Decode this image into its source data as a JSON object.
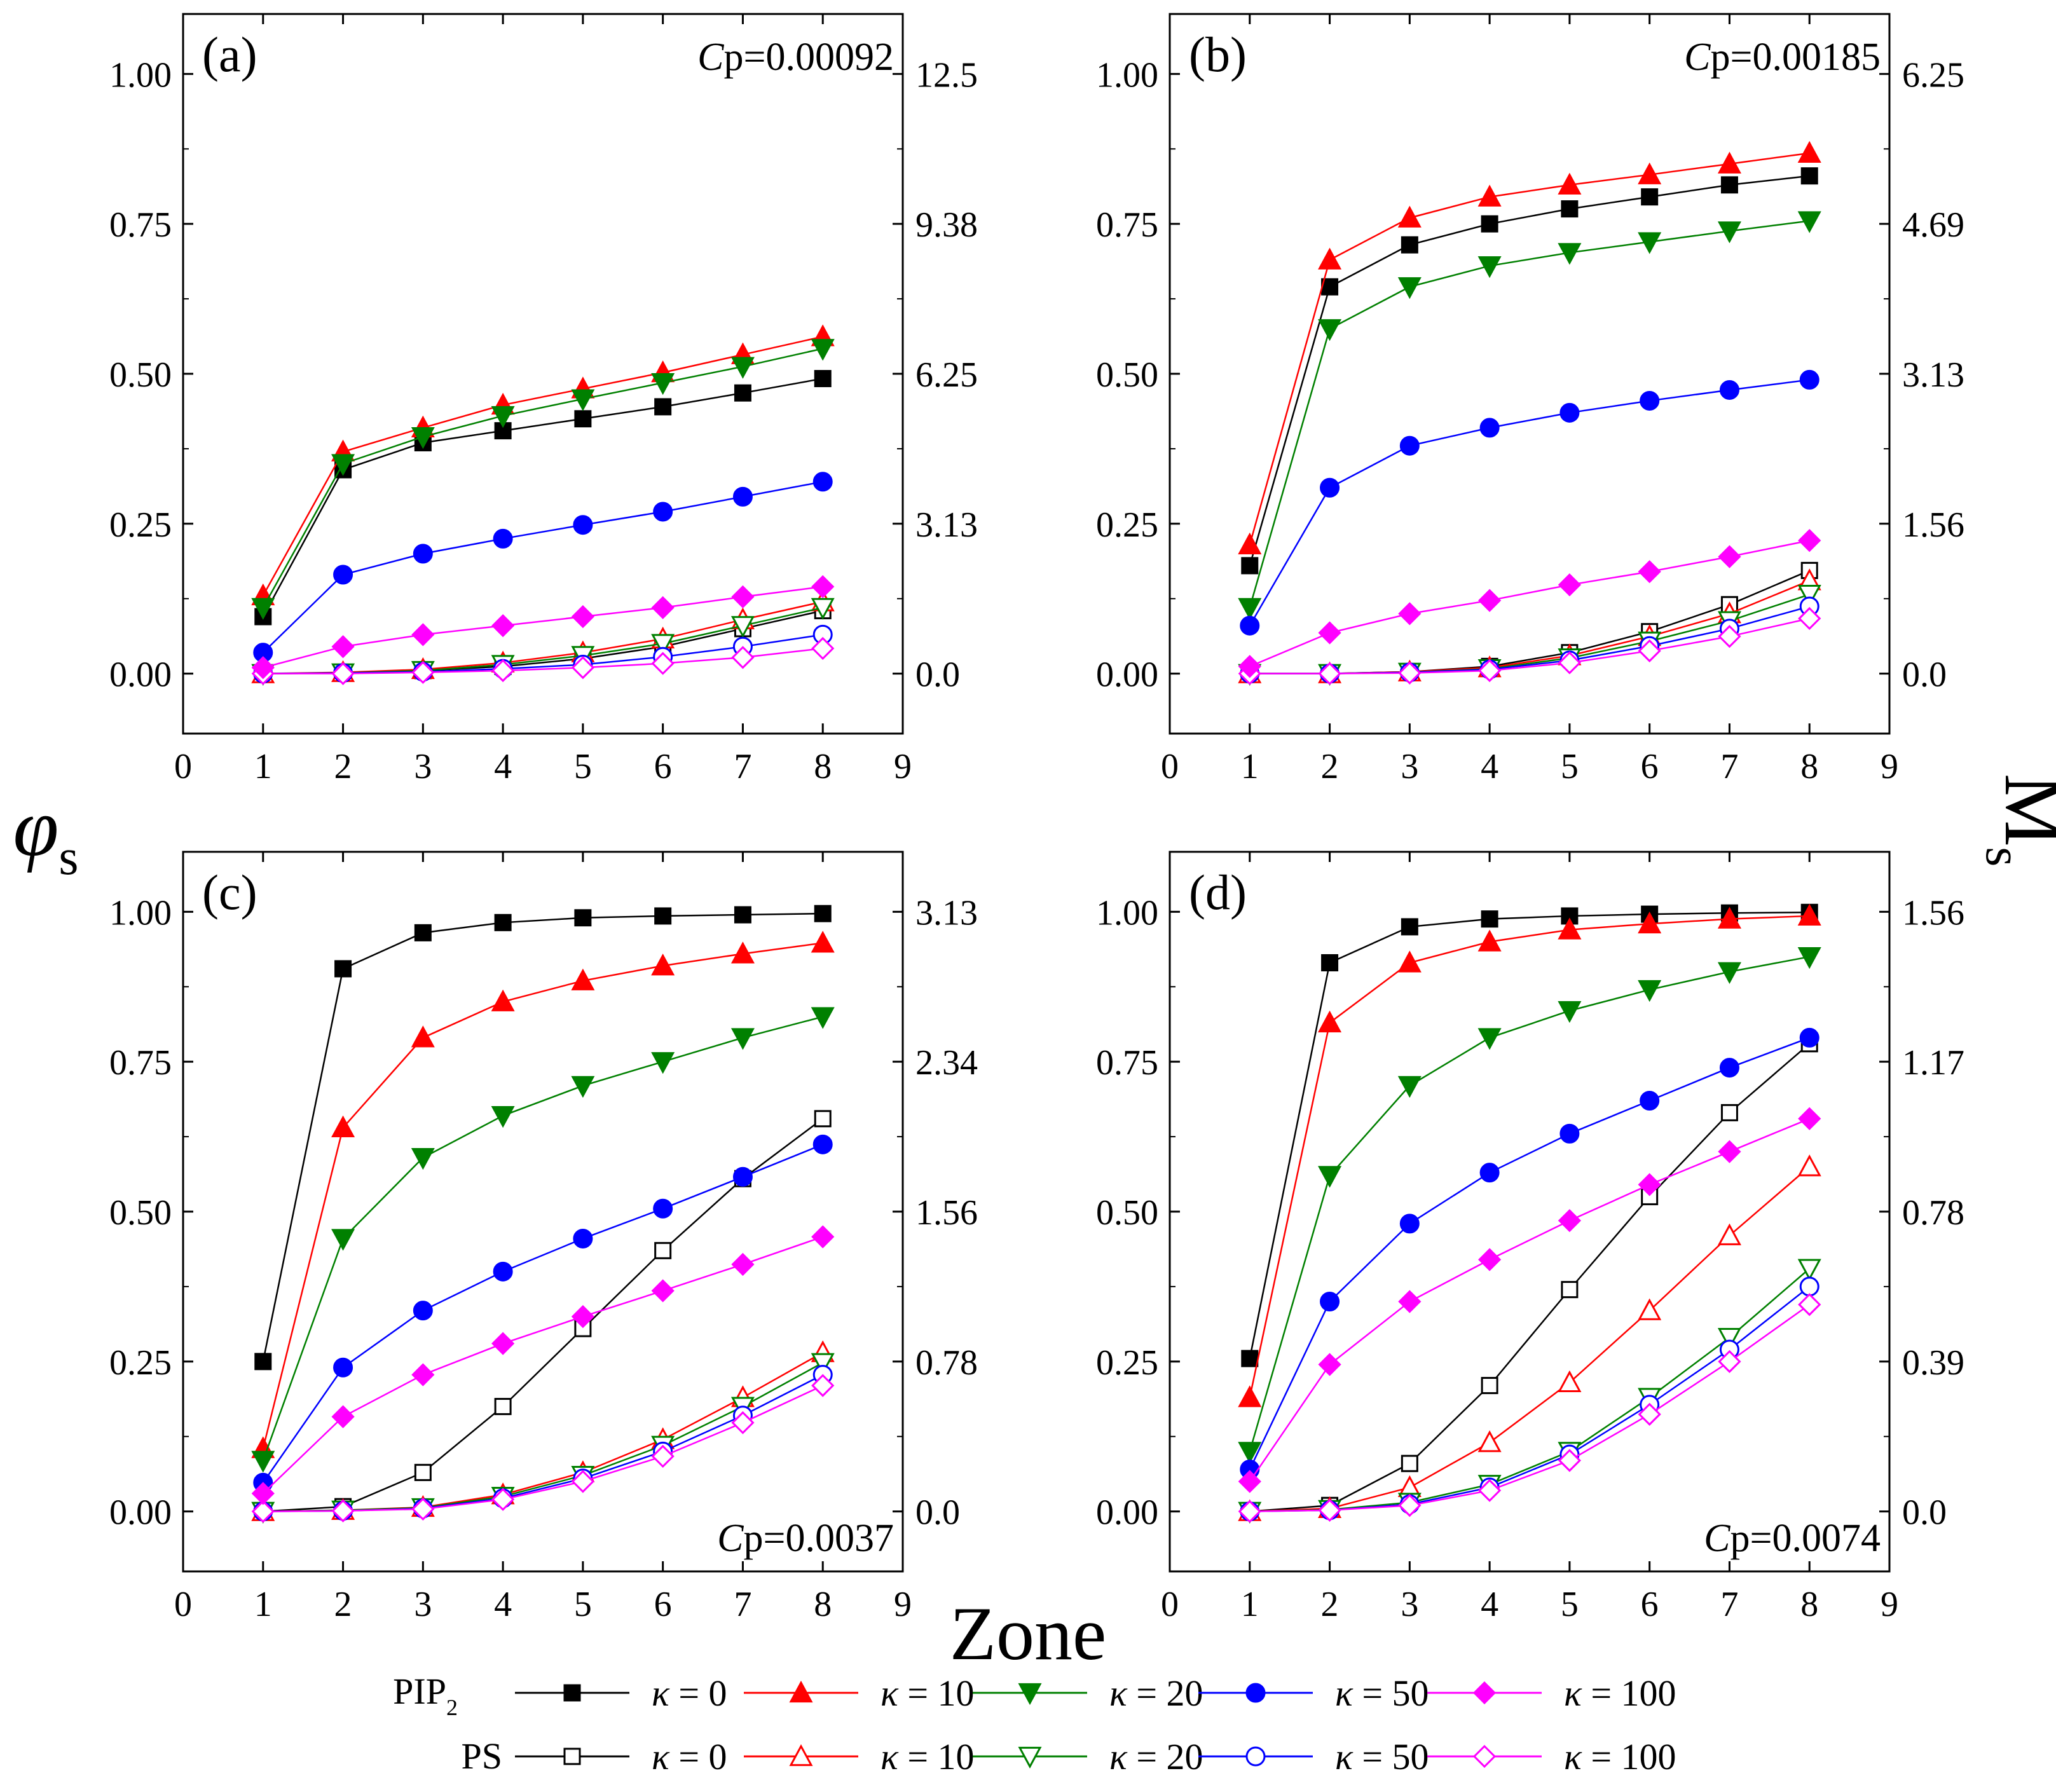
{
  "figure": {
    "y_title_left": "φ",
    "y_title_left_sub": "s",
    "y_title_right": "M",
    "y_title_right_sub": "s",
    "x_title": "Zone"
  },
  "colors": {
    "k0": "#000000",
    "k10": "#ff0000",
    "k20": "#008000",
    "k50": "#0000ff",
    "k100": "#ff00ff"
  },
  "legend": {
    "pip2_label": "PIP",
    "pip2_sub": "2",
    "ps_label": "PS",
    "entries": [
      {
        "key": "k0",
        "kappa": "κ",
        "text": " = 0",
        "marker": "square"
      },
      {
        "key": "k10",
        "kappa": "κ",
        "text": " = 10",
        "marker": "triangle-up"
      },
      {
        "key": "k20",
        "kappa": "κ",
        "text": " = 20",
        "marker": "triangle-down"
      },
      {
        "key": "k50",
        "kappa": "κ",
        "text": " = 50",
        "marker": "circle"
      },
      {
        "key": "k100",
        "kappa": "κ",
        "text": " = 100",
        "marker": "diamond"
      }
    ]
  },
  "chart_data": [
    {
      "type": "line",
      "panel": "(a)",
      "cp_text": "p=0.00092",
      "cp_italic": "C",
      "xlim": [
        0,
        9
      ],
      "ylim": [
        -0.1,
        1.1
      ],
      "x_ticks": [
        "0",
        "1",
        "2",
        "3",
        "4",
        "5",
        "6",
        "7",
        "8",
        "9"
      ],
      "y_ticks": [
        "0.00",
        "0.25",
        "0.50",
        "0.75",
        "1.00"
      ],
      "right_ticks": [
        "0.0",
        "3.13",
        "6.25",
        "9.38",
        "12.5"
      ],
      "x": [
        1,
        2,
        3,
        4,
        5,
        6,
        7,
        8
      ],
      "series": [
        {
          "group": "PIP2",
          "key": "k0",
          "values": [
            0.095,
            0.34,
            0.385,
            0.405,
            0.425,
            0.445,
            0.468,
            0.492
          ]
        },
        {
          "group": "PIP2",
          "key": "k10",
          "values": [
            0.13,
            0.37,
            0.41,
            0.448,
            0.475,
            0.502,
            0.532,
            0.562
          ]
        },
        {
          "group": "PIP2",
          "key": "k20",
          "values": [
            0.11,
            0.35,
            0.395,
            0.43,
            0.458,
            0.485,
            0.512,
            0.542
          ]
        },
        {
          "group": "PIP2",
          "key": "k50",
          "values": [
            0.035,
            0.165,
            0.2,
            0.225,
            0.248,
            0.27,
            0.295,
            0.32
          ]
        },
        {
          "group": "PIP2",
          "key": "k100",
          "values": [
            0.01,
            0.045,
            0.065,
            0.08,
            0.095,
            0.11,
            0.128,
            0.145
          ]
        },
        {
          "group": "PS",
          "key": "k0",
          "values": [
            0.0,
            0.001,
            0.005,
            0.012,
            0.025,
            0.045,
            0.075,
            0.105
          ]
        },
        {
          "group": "PS",
          "key": "k10",
          "values": [
            0.0,
            0.002,
            0.007,
            0.018,
            0.035,
            0.058,
            0.09,
            0.12
          ]
        },
        {
          "group": "PS",
          "key": "k20",
          "values": [
            0.0,
            0.001,
            0.005,
            0.015,
            0.03,
            0.05,
            0.08,
            0.11
          ]
        },
        {
          "group": "PS",
          "key": "k50",
          "values": [
            0.0,
            0.001,
            0.003,
            0.008,
            0.015,
            0.028,
            0.045,
            0.065
          ]
        },
        {
          "group": "PS",
          "key": "k100",
          "values": [
            0.0,
            0.0,
            0.002,
            0.005,
            0.01,
            0.017,
            0.027,
            0.042
          ]
        }
      ]
    },
    {
      "type": "line",
      "panel": "(b)",
      "cp_text": "p=0.00185",
      "cp_italic": "C",
      "xlim": [
        0,
        9
      ],
      "ylim": [
        -0.1,
        1.1
      ],
      "x_ticks": [
        "0",
        "1",
        "2",
        "3",
        "4",
        "5",
        "6",
        "7",
        "8",
        "9"
      ],
      "y_ticks": [
        "0.00",
        "0.25",
        "0.50",
        "0.75",
        "1.00"
      ],
      "right_ticks": [
        "0.0",
        "1.56",
        "3.13",
        "4.69",
        "6.25"
      ],
      "x": [
        1,
        2,
        3,
        4,
        5,
        6,
        7,
        8
      ],
      "series": [
        {
          "group": "PIP2",
          "key": "k0",
          "values": [
            0.18,
            0.645,
            0.715,
            0.75,
            0.775,
            0.795,
            0.815,
            0.83
          ]
        },
        {
          "group": "PIP2",
          "key": "k10",
          "values": [
            0.215,
            0.69,
            0.76,
            0.795,
            0.815,
            0.832,
            0.85,
            0.868
          ]
        },
        {
          "group": "PIP2",
          "key": "k20",
          "values": [
            0.11,
            0.575,
            0.645,
            0.68,
            0.702,
            0.72,
            0.738,
            0.755
          ]
        },
        {
          "group": "PIP2",
          "key": "k50",
          "values": [
            0.08,
            0.31,
            0.38,
            0.41,
            0.435,
            0.455,
            0.473,
            0.49
          ]
        },
        {
          "group": "PIP2",
          "key": "k100",
          "values": [
            0.012,
            0.068,
            0.1,
            0.122,
            0.148,
            0.17,
            0.195,
            0.222
          ]
        },
        {
          "group": "PS",
          "key": "k0",
          "values": [
            0.0,
            0.0,
            0.003,
            0.012,
            0.035,
            0.07,
            0.115,
            0.172
          ]
        },
        {
          "group": "PS",
          "key": "k10",
          "values": [
            0.0,
            0.0,
            0.003,
            0.01,
            0.03,
            0.062,
            0.1,
            0.155
          ]
        },
        {
          "group": "PS",
          "key": "k20",
          "values": [
            0.0,
            0.0,
            0.002,
            0.008,
            0.026,
            0.054,
            0.088,
            0.132
          ]
        },
        {
          "group": "PS",
          "key": "k50",
          "values": [
            0.0,
            0.0,
            0.002,
            0.007,
            0.022,
            0.046,
            0.075,
            0.112
          ]
        },
        {
          "group": "PS",
          "key": "k100",
          "values": [
            0.0,
            0.0,
            0.001,
            0.005,
            0.018,
            0.038,
            0.062,
            0.092
          ]
        }
      ]
    },
    {
      "type": "line",
      "panel": "(c)",
      "cp_text": "p=0.0037",
      "cp_italic": "C",
      "xlim": [
        0,
        9
      ],
      "ylim": [
        -0.1,
        1.1
      ],
      "x_ticks": [
        "0",
        "1",
        "2",
        "3",
        "4",
        "5",
        "6",
        "7",
        "8",
        "9"
      ],
      "y_ticks": [
        "0.00",
        "0.25",
        "0.50",
        "0.75",
        "1.00"
      ],
      "right_ticks": [
        "0.0",
        "0.78",
        "1.56",
        "2.34",
        "3.13"
      ],
      "x": [
        1,
        2,
        3,
        4,
        5,
        6,
        7,
        8
      ],
      "series": [
        {
          "group": "PIP2",
          "key": "k0",
          "values": [
            0.25,
            0.905,
            0.965,
            0.982,
            0.99,
            0.993,
            0.995,
            0.997
          ]
        },
        {
          "group": "PIP2",
          "key": "k10",
          "values": [
            0.105,
            0.64,
            0.79,
            0.85,
            0.885,
            0.91,
            0.93,
            0.948
          ]
        },
        {
          "group": "PIP2",
          "key": "k20",
          "values": [
            0.085,
            0.455,
            0.59,
            0.66,
            0.71,
            0.75,
            0.79,
            0.825
          ]
        },
        {
          "group": "PIP2",
          "key": "k50",
          "values": [
            0.048,
            0.24,
            0.335,
            0.4,
            0.455,
            0.505,
            0.558,
            0.612
          ]
        },
        {
          "group": "PIP2",
          "key": "k100",
          "values": [
            0.03,
            0.158,
            0.228,
            0.28,
            0.325,
            0.368,
            0.412,
            0.458
          ]
        },
        {
          "group": "PS",
          "key": "k0",
          "values": [
            0.0,
            0.008,
            0.065,
            0.175,
            0.305,
            0.435,
            0.555,
            0.655
          ]
        },
        {
          "group": "PS",
          "key": "k10",
          "values": [
            0.0,
            0.002,
            0.007,
            0.028,
            0.065,
            0.12,
            0.19,
            0.265
          ]
        },
        {
          "group": "PS",
          "key": "k20",
          "values": [
            0.0,
            0.002,
            0.006,
            0.025,
            0.06,
            0.11,
            0.175,
            0.248
          ]
        },
        {
          "group": "PS",
          "key": "k50",
          "values": [
            0.0,
            0.001,
            0.005,
            0.022,
            0.055,
            0.1,
            0.16,
            0.228
          ]
        },
        {
          "group": "PS",
          "key": "k100",
          "values": [
            0.0,
            0.001,
            0.004,
            0.02,
            0.05,
            0.092,
            0.148,
            0.21
          ]
        }
      ]
    },
    {
      "type": "line",
      "panel": "(d)",
      "cp_text": "p=0.0074",
      "cp_italic": "C",
      "xlim": [
        0,
        9
      ],
      "ylim": [
        -0.1,
        1.1
      ],
      "x_ticks": [
        "0",
        "1",
        "2",
        "3",
        "4",
        "5",
        "6",
        "7",
        "8",
        "9"
      ],
      "y_ticks": [
        "0.00",
        "0.25",
        "0.50",
        "0.75",
        "1.00"
      ],
      "right_ticks": [
        "0.0",
        "0.39",
        "0.78",
        "1.17",
        "1.56"
      ],
      "x": [
        1,
        2,
        3,
        4,
        5,
        6,
        7,
        8
      ],
      "series": [
        {
          "group": "PIP2",
          "key": "k0",
          "values": [
            0.255,
            0.915,
            0.975,
            0.988,
            0.993,
            0.996,
            0.998,
            0.999
          ]
        },
        {
          "group": "PIP2",
          "key": "k10",
          "values": [
            0.19,
            0.815,
            0.915,
            0.95,
            0.97,
            0.98,
            0.988,
            0.993
          ]
        },
        {
          "group": "PIP2",
          "key": "k20",
          "values": [
            0.1,
            0.56,
            0.71,
            0.79,
            0.835,
            0.87,
            0.9,
            0.925
          ]
        },
        {
          "group": "PIP2",
          "key": "k50",
          "values": [
            0.07,
            0.35,
            0.48,
            0.565,
            0.63,
            0.685,
            0.74,
            0.79
          ]
        },
        {
          "group": "PIP2",
          "key": "k100",
          "values": [
            0.05,
            0.245,
            0.35,
            0.42,
            0.485,
            0.545,
            0.6,
            0.655
          ]
        },
        {
          "group": "PS",
          "key": "k0",
          "values": [
            0.0,
            0.01,
            0.08,
            0.21,
            0.37,
            0.525,
            0.665,
            0.78
          ]
        },
        {
          "group": "PS",
          "key": "k10",
          "values": [
            0.0,
            0.005,
            0.04,
            0.115,
            0.215,
            0.335,
            0.46,
            0.575
          ]
        },
        {
          "group": "PS",
          "key": "k20",
          "values": [
            0.0,
            0.003,
            0.015,
            0.045,
            0.1,
            0.19,
            0.29,
            0.405
          ]
        },
        {
          "group": "PS",
          "key": "k50",
          "values": [
            0.0,
            0.002,
            0.012,
            0.04,
            0.095,
            0.178,
            0.27,
            0.375
          ]
        },
        {
          "group": "PS",
          "key": "k100",
          "values": [
            0.0,
            0.002,
            0.01,
            0.035,
            0.085,
            0.162,
            0.25,
            0.345
          ]
        }
      ]
    }
  ]
}
